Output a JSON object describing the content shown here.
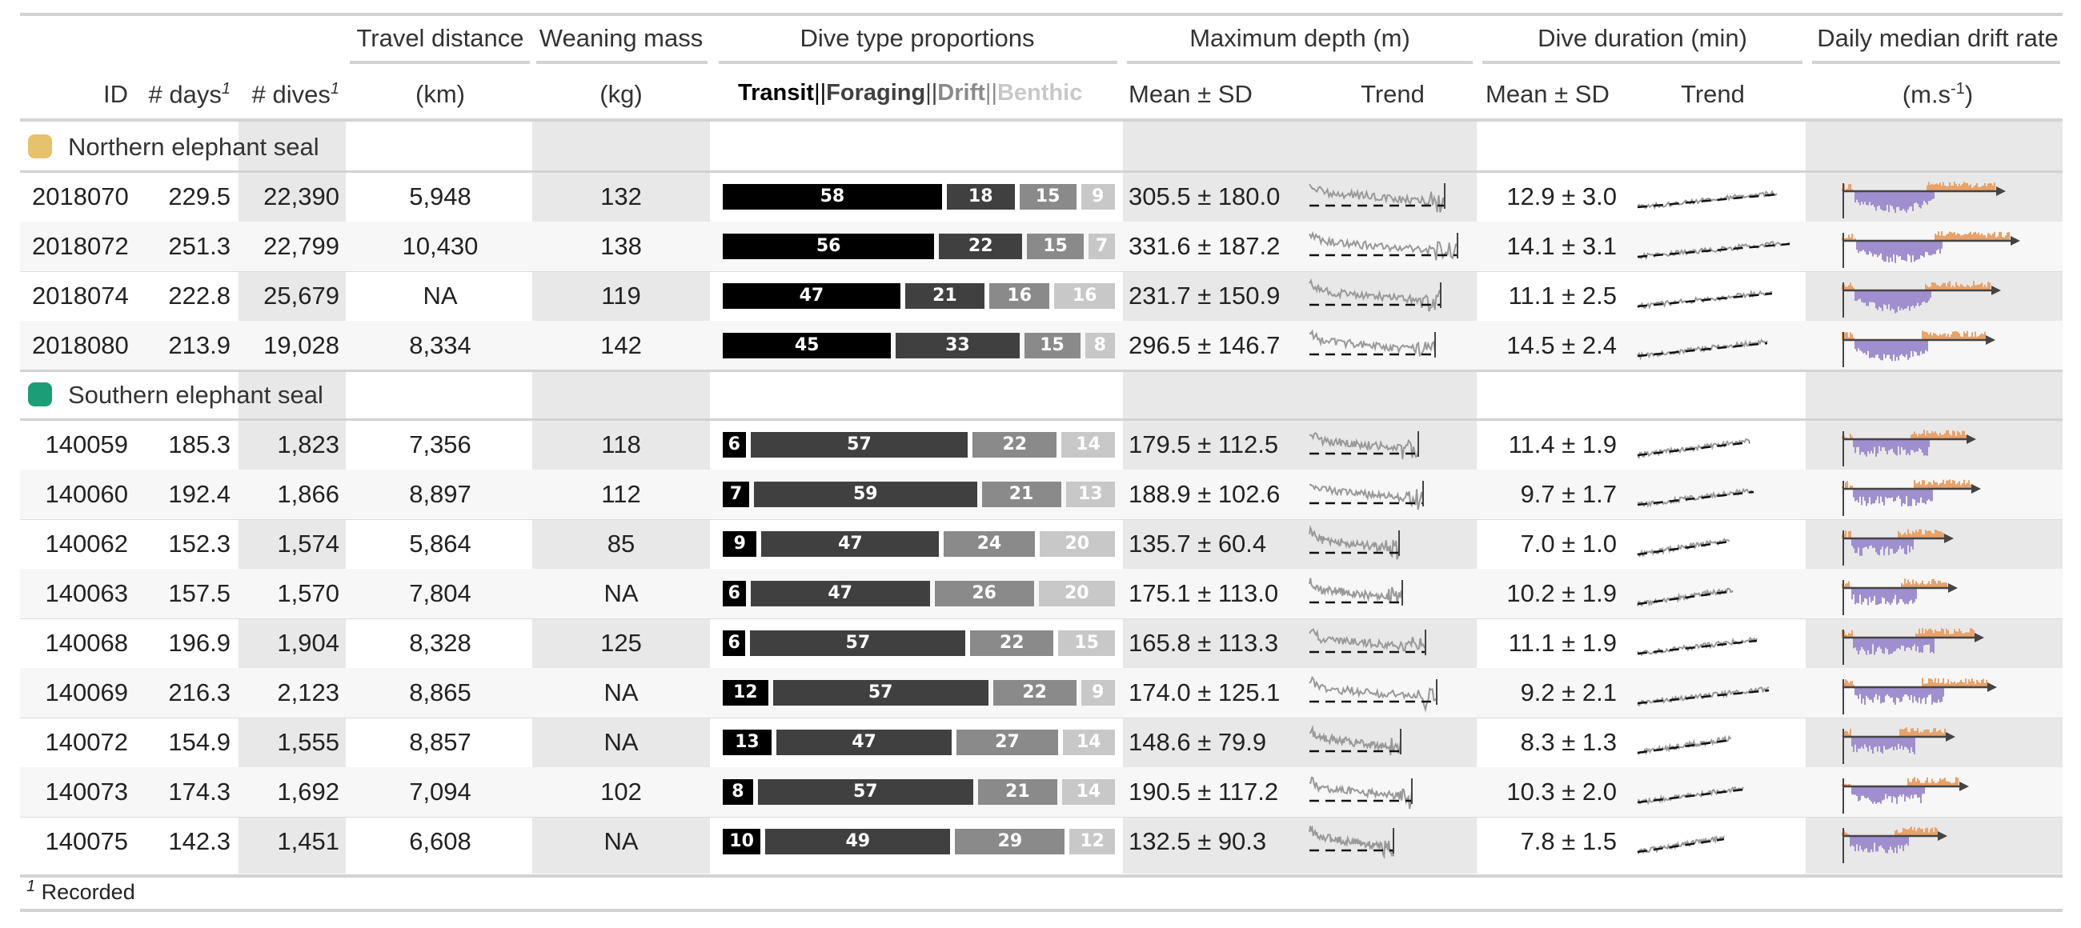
{
  "headers": {
    "id": "ID",
    "days": "# days",
    "dives": "# dives",
    "days_sup": "1",
    "dives_sup": "1",
    "travel_top": "Travel distance",
    "travel_unit": "(km)",
    "wean_top": "Weaning mass",
    "wean_unit": "(kg)",
    "dive_type_top": "Dive type proportions",
    "max_depth_top": "Maximum depth (m)",
    "dive_dur_top": "Dive duration (min)",
    "drift_top": "Daily median drift rate",
    "drift_unit_pre": "(m.s",
    "drift_unit_sup": "-1",
    "drift_unit_post": ")",
    "mean_sd": "Mean ± SD",
    "trend": "Trend"
  },
  "dive_types": [
    {
      "label": "Transit",
      "color": "#000000"
    },
    {
      "label": "Foraging",
      "color": "#404040"
    },
    {
      "label": "Drift",
      "color": "#8a8a8a"
    },
    {
      "label": "Benthic",
      "color": "#c8c8c8"
    }
  ],
  "sep": "||",
  "groups": [
    {
      "name": "Northern elephant seal",
      "color": "#e6c26e",
      "rows": [
        {
          "id": "2018070",
          "days": "229.5",
          "dives": "22,390",
          "travel": "5,948",
          "wean": "132",
          "props": [
            58,
            18,
            15,
            9
          ],
          "depth": "305.5 ± 180.0",
          "dur": "12.9 ± 3.0"
        },
        {
          "id": "2018072",
          "days": "251.3",
          "dives": "22,799",
          "travel": "10,430",
          "wean": "138",
          "props": [
            56,
            22,
            15,
            7
          ],
          "depth": "331.6 ± 187.2",
          "dur": "14.1 ± 3.1"
        },
        {
          "id": "2018074",
          "days": "222.8",
          "dives": "25,679",
          "travel": "NA",
          "wean": "119",
          "props": [
            47,
            21,
            16,
            16
          ],
          "depth": "231.7 ± 150.9",
          "dur": "11.1 ± 2.5"
        },
        {
          "id": "2018080",
          "days": "213.9",
          "dives": "19,028",
          "travel": "8,334",
          "wean": "142",
          "props": [
            45,
            33,
            15,
            8
          ],
          "depth": "296.5 ± 146.7",
          "dur": "14.5 ± 2.4"
        }
      ]
    },
    {
      "name": "Southern elephant seal",
      "color": "#1b9e77",
      "rows": [
        {
          "id": "140059",
          "days": "185.3",
          "dives": "1,823",
          "travel": "7,356",
          "wean": "118",
          "props": [
            6,
            57,
            22,
            14
          ],
          "depth": "179.5 ± 112.5",
          "dur": "11.4 ± 1.9"
        },
        {
          "id": "140060",
          "days": "192.4",
          "dives": "1,866",
          "travel": "8,897",
          "wean": "112",
          "props": [
            7,
            59,
            21,
            13
          ],
          "depth": "188.9 ± 102.6",
          "dur": "9.7 ± 1.7"
        },
        {
          "id": "140062",
          "days": "152.3",
          "dives": "1,574",
          "travel": "5,864",
          "wean": "85",
          "props": [
            9,
            47,
            24,
            20
          ],
          "depth": "135.7 ± 60.4",
          "dur": "7.0 ± 1.0"
        },
        {
          "id": "140063",
          "days": "157.5",
          "dives": "1,570",
          "travel": "7,804",
          "wean": "NA",
          "props": [
            6,
            47,
            26,
            20
          ],
          "depth": "175.1 ± 113.0",
          "dur": "10.2 ± 1.9"
        },
        {
          "id": "140068",
          "days": "196.9",
          "dives": "1,904",
          "travel": "8,328",
          "wean": "125",
          "props": [
            6,
            57,
            22,
            15
          ],
          "depth": "165.8 ± 113.3",
          "dur": "11.1 ± 1.9"
        },
        {
          "id": "140069",
          "days": "216.3",
          "dives": "2,123",
          "travel": "8,865",
          "wean": "NA",
          "props": [
            12,
            57,
            22,
            9
          ],
          "depth": "174.0 ± 125.1",
          "dur": "9.2 ± 2.1"
        },
        {
          "id": "140072",
          "days": "154.9",
          "dives": "1,555",
          "travel": "8,857",
          "wean": "NA",
          "props": [
            13,
            47,
            27,
            14
          ],
          "depth": "148.6 ± 79.9",
          "dur": "8.3 ± 1.3"
        },
        {
          "id": "140073",
          "days": "174.3",
          "dives": "1,692",
          "travel": "7,094",
          "wean": "102",
          "props": [
            8,
            57,
            21,
            14
          ],
          "depth": "190.5 ± 117.2",
          "dur": "10.3 ± 2.0"
        },
        {
          "id": "140075",
          "days": "142.3",
          "dives": "1,451",
          "travel": "6,608",
          "wean": "NA",
          "props": [
            10,
            49,
            29,
            12
          ],
          "depth": "132.5 ± 90.3",
          "dur": "7.8 ± 1.5"
        }
      ]
    }
  ],
  "drift_colors": {
    "positive": "#e8a26a",
    "negative": "#9f8fce"
  },
  "footnote_mark": "1",
  "footnote_text": "Recorded"
}
